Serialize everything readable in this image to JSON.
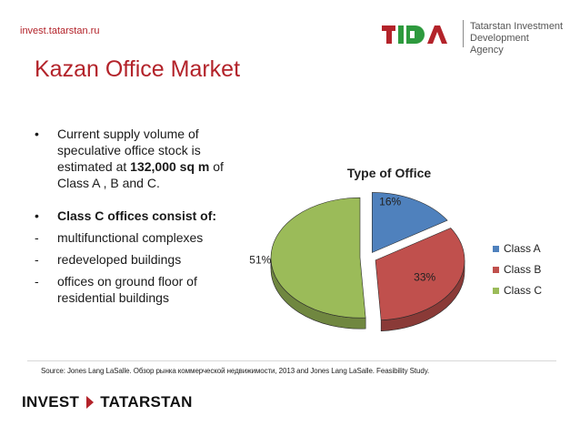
{
  "header": {
    "site_url": "invest.tatarstan.ru",
    "logo_wordmark": "tida",
    "agency_line1": "Tatarstan Investment",
    "agency_line2": "Development Agency"
  },
  "page_title": "Kazan Office Market",
  "bullets": [
    {
      "mark": "•",
      "lines": [
        "Current supply volume of",
        "speculative office stock is",
        "estimated at ",
        "132,000 sq m",
        " of",
        "Class A , B and C."
      ]
    },
    {
      "mark": "•",
      "text": "Class C offices consist of:"
    },
    {
      "mark": "-",
      "text": "multifunctional complexes"
    },
    {
      "mark": "-",
      "text": "redeveloped buildings"
    },
    {
      "mark": "-",
      "text": "offices on ground floor of"
    },
    {
      "mark": "",
      "text": "residential buildings"
    }
  ],
  "chart_data": {
    "type": "pie",
    "title": "Type of Office",
    "categories": [
      "Class A",
      "Class B",
      "Class C"
    ],
    "values": [
      16,
      33,
      51
    ],
    "value_labels": [
      "16%",
      "33%",
      "51%"
    ],
    "colors": [
      "#4f81bd",
      "#c0504d",
      "#9bbb59"
    ],
    "legend_position": "right"
  },
  "source": "Source: Jones Lang LaSalle. Обзор рынка коммерческой недвижимости, 2013 and Jones Lang LaSalle. Feasibility Study.",
  "footer": {
    "brand_left": "INVEST",
    "brand_right": "TATARSTAN"
  }
}
